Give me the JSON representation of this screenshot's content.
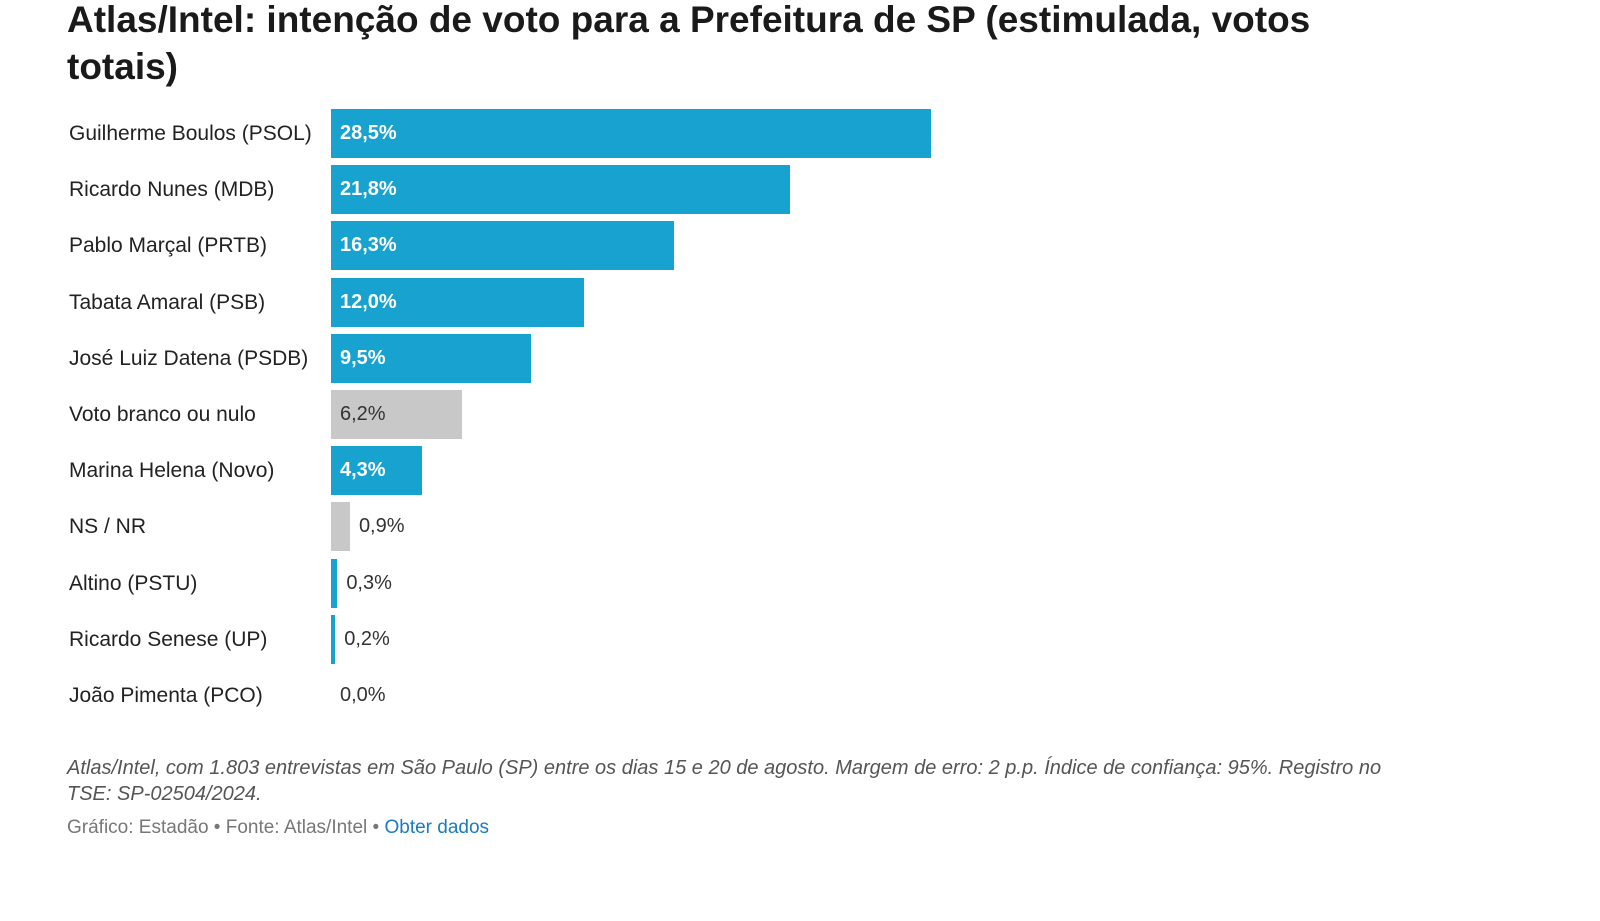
{
  "chart_data": {
    "type": "bar",
    "orientation": "horizontal",
    "title": "Atlas/Intel: intenção de voto para a Prefeitura de SP (estimulada, votos totais)",
    "categories": [
      "Guilherme Boulos (PSOL)",
      "Ricardo Nunes (MDB)",
      "Pablo Marçal (PRTB)",
      "Tabata Amaral (PSB)",
      "José Luiz Datena (PSDB)",
      "Voto branco ou nulo",
      "Marina Helena (Novo)",
      "NS / NR",
      "Altino (PSTU)",
      "Ricardo Senese (UP)",
      "João Pimenta (PCO)"
    ],
    "values": [
      28.5,
      21.8,
      16.3,
      12.0,
      9.5,
      6.2,
      4.3,
      0.9,
      0.3,
      0.2,
      0.0
    ],
    "value_labels": [
      "28,5%",
      "21,8%",
      "16,3%",
      "12,0%",
      "9,5%",
      "6,2%",
      "4,3%",
      "0,9%",
      "0,3%",
      "0,2%",
      "0,0%"
    ],
    "bar_colors": [
      "#17a2cf",
      "#17a2cf",
      "#17a2cf",
      "#17a2cf",
      "#17a2cf",
      "#c8c8c8",
      "#17a2cf",
      "#c8c8c8",
      "#17a2cf",
      "#17a2cf",
      "#17a2cf"
    ],
    "xlim": [
      0,
      30
    ],
    "xlabel": "",
    "ylabel": ""
  },
  "notes": {
    "text": "Atlas/Intel, com 1.803 entrevistas em São Paulo (SP) entre os dias 15 e 20 de agosto. Margem de erro: 2 p.p. Índice de confiança: 95%. Registro no TSE: SP-02504/2024."
  },
  "footer": {
    "credit": "Gráfico: Estadão • Fonte: Atlas/Intel • ",
    "link_label": "Obter dados"
  },
  "colors": {
    "primary": "#17a2cf",
    "neutral": "#c8c8c8",
    "link": "#1b7bc0"
  }
}
